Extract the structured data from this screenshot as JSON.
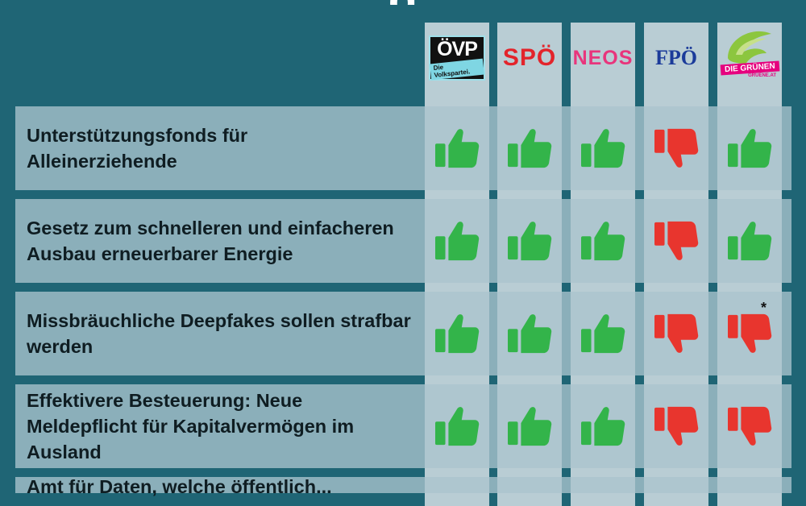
{
  "title": "g",
  "parties": [
    {
      "id": "oevp",
      "name": "ÖVP",
      "sub": "Die Volkspartei."
    },
    {
      "id": "spoe",
      "name": "SPÖ"
    },
    {
      "id": "neos",
      "name": "NEOS"
    },
    {
      "id": "fpoe",
      "name": "FPÖ"
    },
    {
      "id": "gruene",
      "name": "DIE GRÜNEN",
      "sub": "GRUENE.AT"
    }
  ],
  "rows": [
    {
      "label": "Unterstützungsfonds für Alleinerziehende",
      "votes": [
        "yes",
        "yes",
        "yes",
        "no",
        "yes"
      ],
      "note": ""
    },
    {
      "label": "Gesetz zum schnelleren und einfacheren Ausbau erneuerbarer Energie",
      "votes": [
        "yes",
        "yes",
        "yes",
        "no",
        "yes"
      ],
      "note": ""
    },
    {
      "label": "Missbräuchliche Deepfakes sollen strafbar werden",
      "votes": [
        "yes",
        "yes",
        "yes",
        "no",
        "no"
      ],
      "note": "*"
    },
    {
      "label": "Effektivere Besteuerung: Neue Meldepflicht für Kapitalvermögen im Ausland",
      "votes": [
        "yes",
        "yes",
        "yes",
        "no",
        "no"
      ],
      "note": ""
    },
    {
      "label": "Amt für Daten, welche öffentlich...",
      "votes": [],
      "note": ""
    }
  ],
  "colors": {
    "background": "#1f6575",
    "yes": "#33b44a",
    "no": "#e8352e",
    "column": "#b9cdd4"
  }
}
